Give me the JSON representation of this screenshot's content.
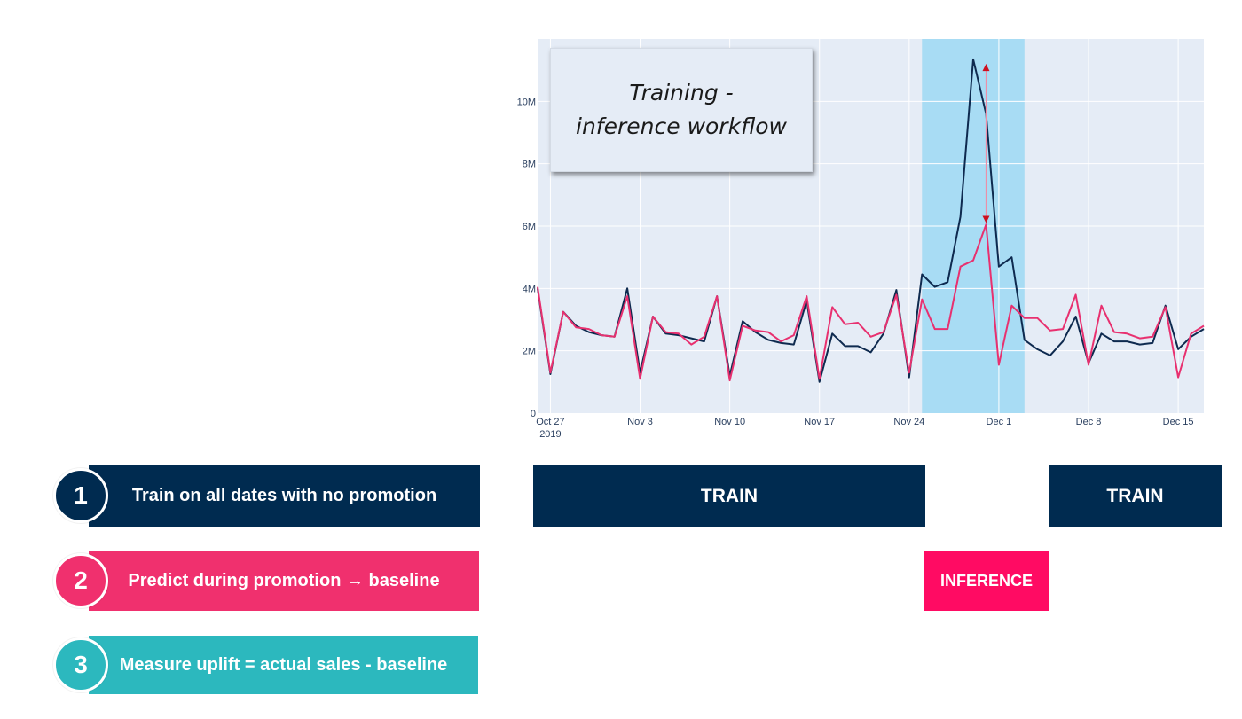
{
  "chart_data": {
    "type": "line",
    "title": "Training - inference workflow",
    "x_tick_labels": [
      "Oct 27\n2019",
      "Nov 3",
      "Nov 10",
      "Nov 17",
      "Nov 24",
      "Dec 1",
      "Dec 8",
      "Dec 15"
    ],
    "x_start": "2019-10-26",
    "x_end": "2019-12-17",
    "y_tick_labels": [
      "0",
      "2M",
      "4M",
      "6M",
      "8M",
      "10M"
    ],
    "y_ticks": [
      0,
      2000000,
      4000000,
      6000000,
      8000000,
      10000000
    ],
    "ylim": [
      0,
      12000000
    ],
    "grid": true,
    "highlight_region": [
      "2019-11-25",
      "2019-12-03"
    ],
    "highlight_color": "#a8dcf4",
    "series": [
      {
        "color": "#0e2a4f",
        "dates": [
          "2019-10-26",
          "2019-10-27",
          "2019-10-28",
          "2019-10-29",
          "2019-10-30",
          "2019-10-31",
          "2019-11-01",
          "2019-11-02",
          "2019-11-03",
          "2019-11-04",
          "2019-11-05",
          "2019-11-06",
          "2019-11-07",
          "2019-11-08",
          "2019-11-09",
          "2019-11-10",
          "2019-11-11",
          "2019-11-12",
          "2019-11-13",
          "2019-11-14",
          "2019-11-15",
          "2019-11-16",
          "2019-11-17",
          "2019-11-18",
          "2019-11-19",
          "2019-11-20",
          "2019-11-21",
          "2019-11-22",
          "2019-11-23",
          "2019-11-24",
          "2019-11-25",
          "2019-11-26",
          "2019-11-27",
          "2019-11-28",
          "2019-11-29",
          "2019-11-30",
          "2019-12-01",
          "2019-12-02",
          "2019-12-03",
          "2019-12-04",
          "2019-12-05",
          "2019-12-06",
          "2019-12-07",
          "2019-12-08",
          "2019-12-09",
          "2019-12-10",
          "2019-12-11",
          "2019-12-12",
          "2019-12-13",
          "2019-12-14",
          "2019-12-15",
          "2019-12-16",
          "2019-12-17"
        ],
        "values": [
          4000000,
          1250000,
          3250000,
          2800000,
          2600000,
          2500000,
          2450000,
          4000000,
          1300000,
          3100000,
          2550000,
          2500000,
          2400000,
          2300000,
          3750000,
          1200000,
          2950000,
          2600000,
          2350000,
          2250000,
          2200000,
          3600000,
          1000000,
          2550000,
          2150000,
          2150000,
          1950000,
          2550000,
          3950000,
          1150000,
          4450000,
          4050000,
          4200000,
          6300000,
          11350000,
          9600000,
          4700000,
          5000000,
          2350000,
          2050000,
          1850000,
          2300000,
          3100000,
          1600000,
          2550000,
          2300000,
          2300000,
          2200000,
          2250000,
          3450000,
          2050000,
          2450000,
          2700000
        ]
      },
      {
        "color": "#e8306f",
        "dates": [
          "2019-10-26",
          "2019-10-27",
          "2019-10-28",
          "2019-10-29",
          "2019-10-30",
          "2019-10-31",
          "2019-11-01",
          "2019-11-02",
          "2019-11-03",
          "2019-11-04",
          "2019-11-05",
          "2019-11-06",
          "2019-11-07",
          "2019-11-08",
          "2019-11-09",
          "2019-11-10",
          "2019-11-11",
          "2019-11-12",
          "2019-11-13",
          "2019-11-14",
          "2019-11-15",
          "2019-11-16",
          "2019-11-17",
          "2019-11-18",
          "2019-11-19",
          "2019-11-20",
          "2019-11-21",
          "2019-11-22",
          "2019-11-23",
          "2019-11-24",
          "2019-11-25",
          "2019-11-26",
          "2019-11-27",
          "2019-11-28",
          "2019-11-29",
          "2019-11-30",
          "2019-12-01",
          "2019-12-02",
          "2019-12-03",
          "2019-12-04",
          "2019-12-05",
          "2019-12-06",
          "2019-12-07",
          "2019-12-08",
          "2019-12-09",
          "2019-12-10",
          "2019-12-11",
          "2019-12-12",
          "2019-12-13",
          "2019-12-14",
          "2019-12-15",
          "2019-12-16",
          "2019-12-17"
        ],
        "values": [
          4050000,
          1300000,
          3250000,
          2750000,
          2700000,
          2500000,
          2450000,
          3750000,
          1100000,
          3100000,
          2600000,
          2550000,
          2200000,
          2450000,
          3750000,
          1050000,
          2800000,
          2650000,
          2600000,
          2300000,
          2500000,
          3750000,
          1100000,
          3400000,
          2850000,
          2900000,
          2450000,
          2600000,
          3800000,
          1300000,
          3650000,
          2700000,
          2700000,
          4700000,
          4900000,
          6050000,
          1550000,
          3450000,
          3050000,
          3050000,
          2650000,
          2700000,
          3800000,
          1550000,
          3450000,
          2600000,
          2550000,
          2400000,
          2450000,
          3400000,
          1150000,
          2550000,
          2800000
        ]
      }
    ],
    "annotation_arrow": {
      "date": "2019-11-30",
      "from": 11200000,
      "to": 6100000,
      "color": "#cc1020"
    }
  },
  "steps": [
    {
      "number": "1",
      "label": "Train on all dates with no promotion",
      "color": "#002b50"
    },
    {
      "number": "2",
      "label": "Predict during promotion → baseline",
      "color": "#f0306e"
    },
    {
      "number": "3",
      "label": "Measure uplift = actual sales - baseline",
      "color": "#2cb8be"
    }
  ],
  "phases": {
    "train_left": {
      "label": "TRAIN",
      "color": "#002b50"
    },
    "inference": {
      "label": "INFERENCE",
      "color": "#ff0b63"
    },
    "train_right": {
      "label": "TRAIN",
      "color": "#002b50"
    }
  }
}
